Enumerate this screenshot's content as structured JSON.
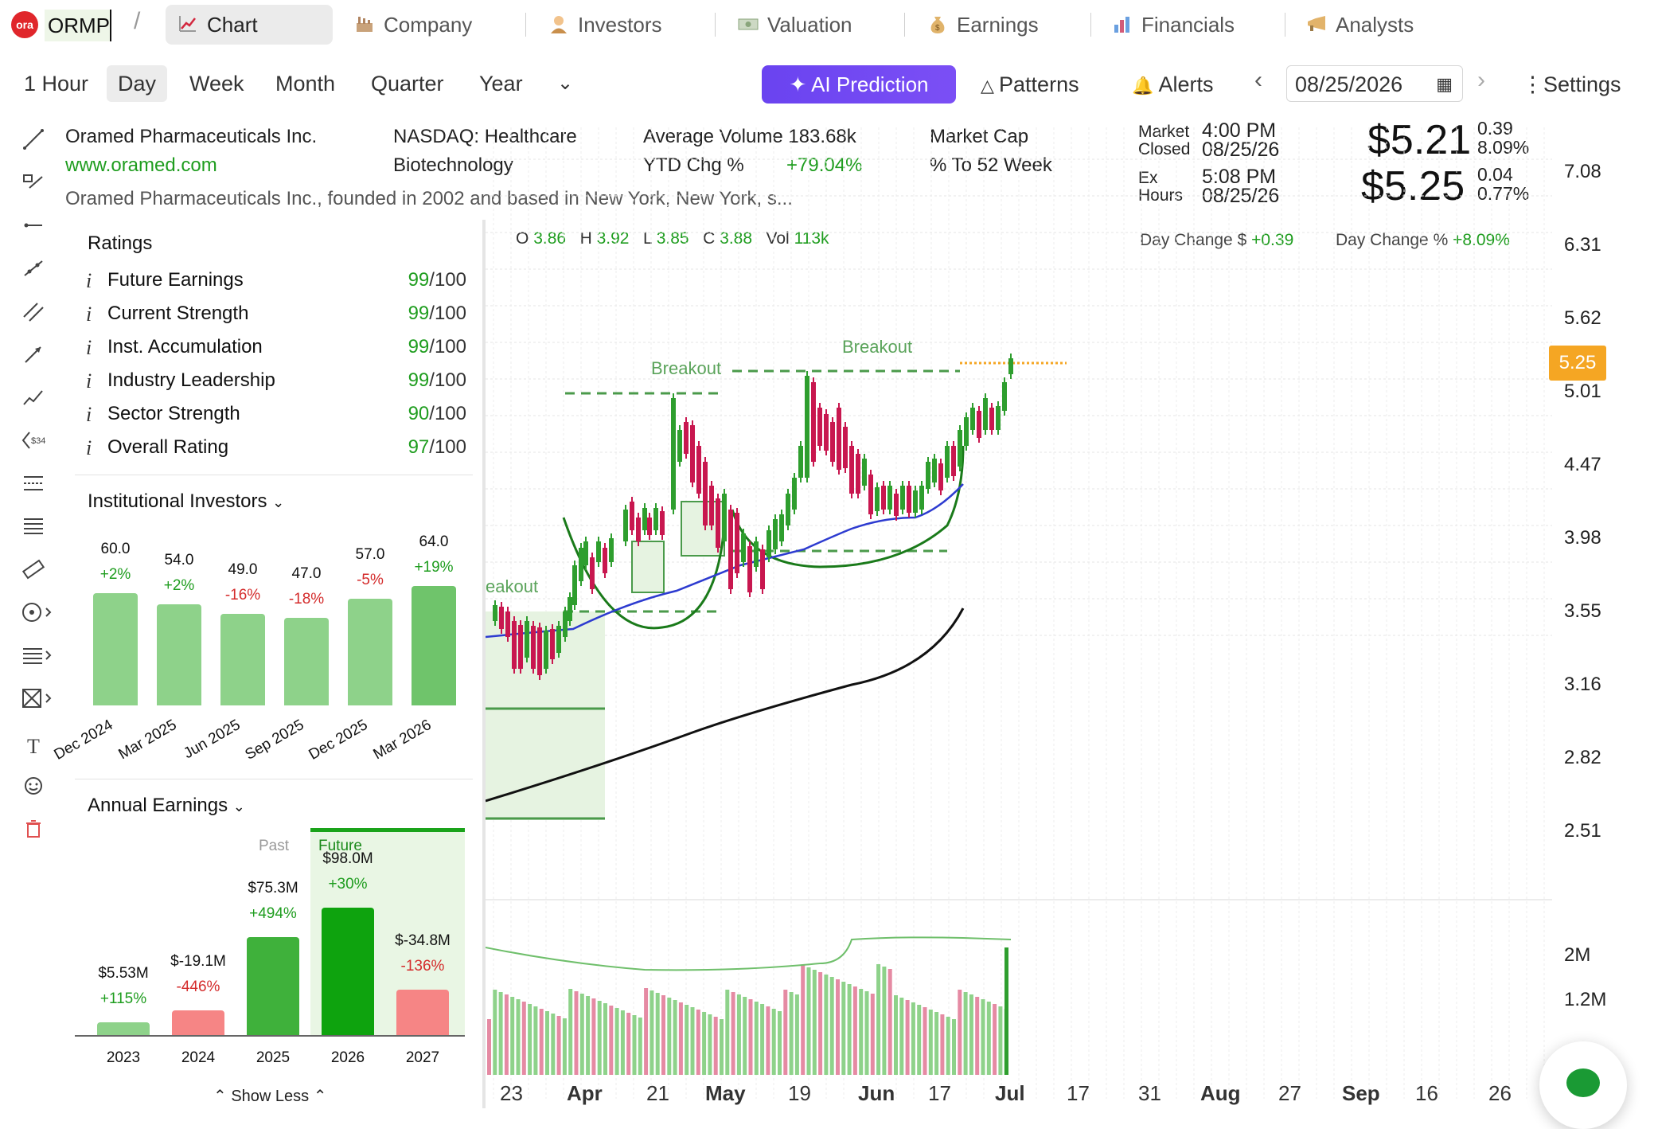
{
  "ticker": {
    "logo": "ora",
    "symbol": "ORMP"
  },
  "tabs": [
    {
      "label": "Chart",
      "icon": "chart-line-icon"
    },
    {
      "label": "Company",
      "icon": "factory-icon"
    },
    {
      "label": "Investors",
      "icon": "investor-person-icon"
    },
    {
      "label": "Valuation",
      "icon": "money-bill-icon"
    },
    {
      "label": "Earnings",
      "icon": "money-bag-icon"
    },
    {
      "label": "Financials",
      "icon": "bar-chart-icon"
    },
    {
      "label": "Analysts",
      "icon": "megaphone-icon"
    }
  ],
  "timeframes": [
    "1 Hour",
    "Day",
    "Week",
    "Month",
    "Quarter",
    "Year"
  ],
  "active_timeframe": "Day",
  "toolbar": {
    "ai_prediction": "AI Prediction",
    "patterns": "Patterns",
    "alerts": "Alerts",
    "date": "08/25/2026",
    "settings": "Settings"
  },
  "company": {
    "name": "Oramed Pharmaceuticals Inc.",
    "website": "www.oramed.com",
    "exchange": "NASDAQ: Healthcare",
    "industry": "Biotechnology",
    "avg_volume_label": "Average Volume",
    "avg_volume": "183.68k",
    "ytd_label": "YTD Chg %",
    "ytd": "+79.04%",
    "market_cap_label": "Market Cap",
    "to52_label": "% To 52 Week",
    "description": "Oramed Pharmaceuticals Inc., founded in 2002 and based in New York, New York, s..."
  },
  "quote": {
    "market_label1": "Market",
    "market_label2": "Closed",
    "market_time": "4:00 PM",
    "market_date": "08/25/26",
    "ex_label1": "Ex",
    "ex_label2": "Hours",
    "ex_time": "5:08 PM",
    "ex_date": "08/25/26",
    "price": "$5.21",
    "change": "0.39",
    "change_pct": "8.09%",
    "ex_price": "$5.25",
    "ex_change": "0.04",
    "ex_change_pct": "0.77%",
    "day_change_label": "Day Change $",
    "day_change": "+0.39",
    "day_change_pct_label": "Day Change %",
    "day_change_pct": "+8.09%"
  },
  "ohlc": {
    "o_label": "O",
    "o": "3.86",
    "h_label": "H",
    "h": "3.92",
    "l_label": "L",
    "l": "3.85",
    "c_label": "C",
    "c": "3.88",
    "vol_label": "Vol",
    "vol": "113k"
  },
  "ratings": {
    "title": "Ratings",
    "items": [
      {
        "label": "Future Earnings",
        "score": "99",
        "max": "/100"
      },
      {
        "label": "Current Strength",
        "score": "99",
        "max": "/100"
      },
      {
        "label": "Inst. Accumulation",
        "score": "99",
        "max": "/100"
      },
      {
        "label": "Industry Leadership",
        "score": "99",
        "max": "/100"
      },
      {
        "label": "Sector Strength",
        "score": "90",
        "max": "/100"
      },
      {
        "label": "Overall Rating",
        "score": "97",
        "max": "/100"
      }
    ]
  },
  "institutional": {
    "title": "Institutional Investors",
    "bars": [
      {
        "quarter": "Dec 2024",
        "value": "60.0",
        "pct": "+2%",
        "dir": "up"
      },
      {
        "quarter": "Mar 2025",
        "value": "54.0",
        "pct": "+2%",
        "dir": "up"
      },
      {
        "quarter": "Jun 2025",
        "value": "49.0",
        "pct": "-16%",
        "dir": "down"
      },
      {
        "quarter": "Sep 2025",
        "value": "47.0",
        "pct": "-18%",
        "dir": "down"
      },
      {
        "quarter": "Dec 2025",
        "value": "57.0",
        "pct": "-5%",
        "dir": "down"
      },
      {
        "quarter": "Mar 2026",
        "value": "64.0",
        "pct": "+19%",
        "dir": "up"
      }
    ]
  },
  "annual_earnings": {
    "title": "Annual Earnings",
    "past_label": "Past",
    "future_label": "Future",
    "years": [
      {
        "year": "2023",
        "value": "$5.53M",
        "pct": "+115%",
        "dir": "up"
      },
      {
        "year": "2024",
        "value": "$-19.1M",
        "pct": "-446%",
        "dir": "down"
      },
      {
        "year": "2025",
        "value": "$75.3M",
        "pct": "+494%",
        "dir": "up"
      },
      {
        "year": "2026",
        "value": "$98.0M",
        "pct": "+30%",
        "dir": "up"
      },
      {
        "year": "2027",
        "value": "$-34.8M",
        "pct": "-136%",
        "dir": "down"
      }
    ],
    "show_less": "Show Less"
  },
  "chart": {
    "price_axis": [
      "7.08",
      "6.31",
      "5.62",
      "5.01",
      "4.47",
      "3.98",
      "3.55",
      "3.16",
      "2.82",
      "2.51"
    ],
    "volume_axis": [
      "2M",
      "1.2M"
    ],
    "current_price_tag": "5.25",
    "breakout_labels": [
      "Breakout",
      "Breakout",
      "eakout"
    ],
    "x_labels": [
      {
        "t": "23",
        "b": false
      },
      {
        "t": "Apr",
        "b": true
      },
      {
        "t": "21",
        "b": false
      },
      {
        "t": "May",
        "b": true
      },
      {
        "t": "19",
        "b": false
      },
      {
        "t": "Jun",
        "b": true
      },
      {
        "t": "17",
        "b": false
      },
      {
        "t": "Jul",
        "b": true
      },
      {
        "t": "17",
        "b": false
      },
      {
        "t": "31",
        "b": false
      },
      {
        "t": "Aug",
        "b": true
      },
      {
        "t": "27",
        "b": false
      },
      {
        "t": "Sep",
        "b": true
      },
      {
        "t": "16",
        "b": false
      },
      {
        "t": "26",
        "b": false
      }
    ]
  },
  "colors": {
    "up": "#1f9d1f",
    "down": "#d42b2b",
    "accent": "#7048f2",
    "candle_up": "#2e9e2e",
    "candle_down": "#c8174f",
    "price_tag": "#f5a623"
  }
}
